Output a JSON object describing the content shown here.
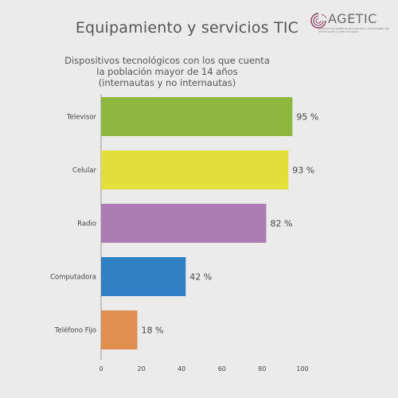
{
  "page_title": "Equipamiento y servicios TIC",
  "logo": {
    "name": "AGETIC",
    "tagline": "Agencia de gobierno electrónico y tecnologías de información y comunicación"
  },
  "chart_data": {
    "type": "bar",
    "orientation": "horizontal",
    "title_lines": [
      "Dispositivos tecnológicos con los que cuenta",
      "la población mayor de 14 años",
      "(internautas y no internautas)"
    ],
    "categories": [
      "Televisor",
      "Celular",
      "Radio",
      "Computadora",
      "Teléfono Fijo"
    ],
    "values": [
      95,
      93,
      82,
      42,
      18
    ],
    "value_labels": [
      "95 %",
      "93 %",
      "82 %",
      "42 %",
      "18 %"
    ],
    "colors": [
      "#8db73f",
      "#e2df3a",
      "#ad7cb3",
      "#2f7fc4",
      "#de8f50"
    ],
    "xlim": [
      0,
      100
    ],
    "xticks": [
      0,
      20,
      40,
      60,
      80,
      100
    ],
    "grid": false,
    "legend": "none"
  }
}
